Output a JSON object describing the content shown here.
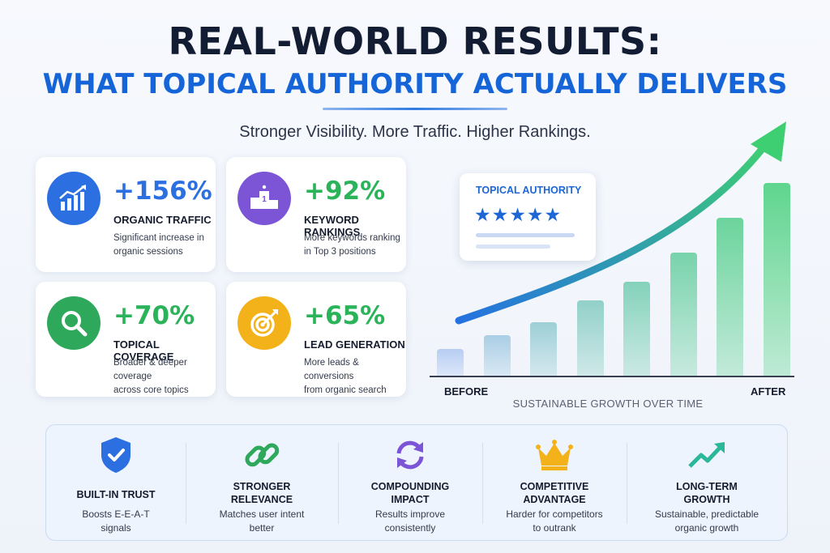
{
  "header": {
    "title_line1": "REAL-WORLD RESULTS:",
    "title_line2": "WHAT TOPICAL AUTHORITY ACTUALLY DELIVERS",
    "subtitle": "Stronger Visibility. More Traffic. Higher Rankings."
  },
  "stats": [
    {
      "value": "+156%",
      "label": "ORGANIC TRAFFIC",
      "desc1": "Significant increase in",
      "desc2": "organic sessions",
      "icon": "trending-chart-icon",
      "color": "#2c6fe0"
    },
    {
      "value": "+92%",
      "label": "KEYWORD RANKINGS",
      "desc1": "More keywords ranking",
      "desc2": "in Top 3 positions",
      "icon": "podium-icon",
      "color": "#7b55d6"
    },
    {
      "value": "+70%",
      "label": "TOPICAL COVERAGE",
      "desc1": "Broader & deeper coverage",
      "desc2": "across core topics",
      "icon": "magnifier-icon",
      "color": "#2ea85a"
    },
    {
      "value": "+65%",
      "label": "LEAD GENERATION",
      "desc1": "More leads & conversions",
      "desc2": "from organic search",
      "icon": "target-icon",
      "color": "#f4b21a"
    }
  ],
  "badge": {
    "title": "TOPICAL AUTHORITY",
    "stars": "★★★★★"
  },
  "chart_data": {
    "type": "bar",
    "categories": [
      "BEFORE",
      "",
      "",
      "",
      "",
      "",
      "",
      "AFTER"
    ],
    "values": [
      1,
      1.5,
      2,
      2.8,
      3.5,
      4.6,
      5.9,
      7.2
    ],
    "xlabel": "SUSTAINABLE GROWTH OVER TIME",
    "ylabel": "",
    "trend_arrow": true,
    "colors": {
      "start": "#b6cdf3",
      "end": "#5fd58e",
      "arrow_start": "#2472e0",
      "arrow_end": "#3fcf73"
    }
  },
  "benefits": [
    {
      "title1": "BUILT-IN TRUST",
      "title2": "",
      "desc1": "Boosts E-E-A-T",
      "desc2": "signals",
      "icon": "shield-check-icon"
    },
    {
      "title1": "STRONGER",
      "title2": "RELEVANCE",
      "desc1": "Matches user intent",
      "desc2": "better",
      "icon": "chain-link-icon"
    },
    {
      "title1": "COMPOUNDING",
      "title2": "IMPACT",
      "desc1": "Results improve",
      "desc2": "consistently",
      "icon": "refresh-cycle-icon"
    },
    {
      "title1": "COMPETITIVE",
      "title2": "ADVANTAGE",
      "desc1": "Harder for competitors",
      "desc2": "to outrank",
      "icon": "crown-icon"
    },
    {
      "title1": "LONG-TERM",
      "title2": "GROWTH",
      "desc1": "Sustainable, predictable",
      "desc2": "organic growth",
      "icon": "growth-arrow-icon"
    }
  ]
}
